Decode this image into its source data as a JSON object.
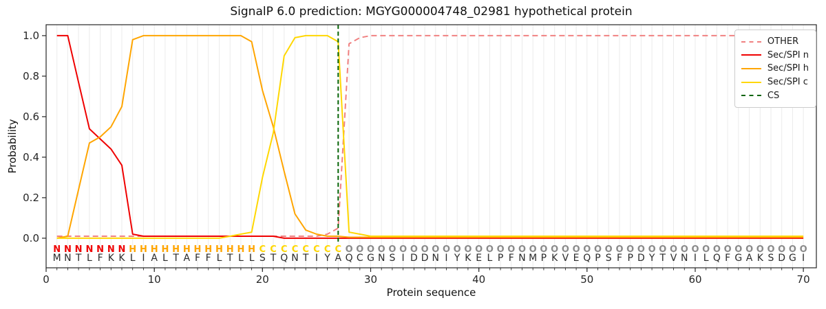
{
  "figure": {
    "title": "SignalP 6.0 prediction: MGYG000004748_02981 hypothetical protein",
    "xlabel": "Protein sequence",
    "ylabel": "Probability"
  },
  "chart_data": {
    "type": "line",
    "title": "SignalP 6.0 prediction: MGYG000004748_02981 hypothetical protein",
    "xlabel": "Protein sequence",
    "ylabel": "Probability",
    "xlim": [
      0,
      71.2
    ],
    "ylim": [
      -0.146,
      1.054
    ],
    "x_ticks": [
      0,
      10,
      20,
      30,
      40,
      50,
      60,
      70
    ],
    "y_ticks": [
      0.0,
      0.2,
      0.4,
      0.6,
      0.8,
      1.0
    ],
    "y_tick_labels": [
      "0.0",
      "0.2",
      "0.4",
      "0.6",
      "0.8",
      "1.0"
    ],
    "grid": {
      "vertical_minor": true,
      "horizontal": false,
      "color": "#ebebeb"
    },
    "legend_position": "upper-right",
    "x_positions": "residues 1-70",
    "series": [
      {
        "name": "OTHER",
        "color": "#f08080",
        "dash": true,
        "values": [
          0.01,
          0.01,
          0.01,
          0.01,
          0.01,
          0.01,
          0.01,
          0.01,
          0.01,
          0.01,
          0.01,
          0.01,
          0.01,
          0.01,
          0.01,
          0.01,
          0.01,
          0.01,
          0.01,
          0.01,
          0.01,
          0.01,
          0.01,
          0.01,
          0.01,
          0.02,
          0.05,
          0.96,
          0.99,
          1.0,
          1.0,
          1.0,
          1.0,
          1.0,
          1.0,
          1.0,
          1.0,
          1.0,
          1.0,
          1.0,
          1.0,
          1.0,
          1.0,
          1.0,
          1.0,
          1.0,
          1.0,
          1.0,
          1.0,
          1.0,
          1.0,
          1.0,
          1.0,
          1.0,
          1.0,
          1.0,
          1.0,
          1.0,
          1.0,
          1.0,
          1.0,
          1.0,
          1.0,
          1.0,
          1.0,
          1.0,
          1.0,
          1.0,
          1.0,
          1.0
        ]
      },
      {
        "name": "Sec/SPI n",
        "color": "#ef0000",
        "dash": false,
        "values": [
          1.0,
          1.0,
          0.77,
          0.54,
          0.49,
          0.44,
          0.36,
          0.02,
          0.01,
          0.01,
          0.01,
          0.01,
          0.01,
          0.01,
          0.01,
          0.01,
          0.01,
          0.01,
          0.01,
          0.01,
          0.01,
          0.0,
          0.0,
          0.0,
          0.0,
          0.0,
          0.0,
          0.0,
          0.0,
          0.0,
          0.0,
          0.0,
          0.0,
          0.0,
          0.0,
          0.0,
          0.0,
          0.0,
          0.0,
          0.0,
          0.0,
          0.0,
          0.0,
          0.0,
          0.0,
          0.0,
          0.0,
          0.0,
          0.0,
          0.0,
          0.0,
          0.0,
          0.0,
          0.0,
          0.0,
          0.0,
          0.0,
          0.0,
          0.0,
          0.0,
          0.0,
          0.0,
          0.0,
          0.0,
          0.0,
          0.0,
          0.0,
          0.0,
          0.0,
          0.0
        ]
      },
      {
        "name": "Sec/SPI h",
        "color": "#ffa500",
        "dash": false,
        "values": [
          0.0,
          0.01,
          0.24,
          0.47,
          0.5,
          0.55,
          0.65,
          0.98,
          1.0,
          1.0,
          1.0,
          1.0,
          1.0,
          1.0,
          1.0,
          1.0,
          1.0,
          1.0,
          0.97,
          0.73,
          0.55,
          0.33,
          0.12,
          0.04,
          0.02,
          0.01,
          0.01,
          0.005,
          0.005,
          0.005,
          0.005,
          0.005,
          0.005,
          0.005,
          0.005,
          0.005,
          0.005,
          0.005,
          0.005,
          0.005,
          0.005,
          0.005,
          0.005,
          0.005,
          0.005,
          0.005,
          0.005,
          0.005,
          0.005,
          0.005,
          0.005,
          0.005,
          0.005,
          0.005,
          0.005,
          0.005,
          0.005,
          0.005,
          0.005,
          0.005,
          0.005,
          0.005,
          0.005,
          0.005,
          0.005,
          0.005,
          0.005,
          0.005,
          0.005,
          0.005
        ]
      },
      {
        "name": "Sec/SPI c",
        "color": "#ffd700",
        "dash": false,
        "values": [
          0.0,
          0.0,
          0.0,
          0.0,
          0.0,
          0.0,
          0.0,
          0.0,
          0.0,
          0.0,
          0.0,
          0.0,
          0.0,
          0.0,
          0.0,
          0.0,
          0.01,
          0.02,
          0.03,
          0.3,
          0.52,
          0.9,
          0.99,
          1.0,
          1.0,
          1.0,
          0.97,
          0.03,
          0.02,
          0.01,
          0.01,
          0.01,
          0.01,
          0.01,
          0.01,
          0.01,
          0.01,
          0.01,
          0.01,
          0.01,
          0.01,
          0.01,
          0.01,
          0.01,
          0.01,
          0.01,
          0.01,
          0.01,
          0.01,
          0.01,
          0.01,
          0.01,
          0.01,
          0.01,
          0.01,
          0.01,
          0.01,
          0.01,
          0.01,
          0.01,
          0.01,
          0.01,
          0.01,
          0.01,
          0.01,
          0.01,
          0.01,
          0.01,
          0.01,
          0.01
        ]
      }
    ],
    "cs_marker": {
      "label": "CS",
      "position": 27,
      "color": "#066406",
      "dash": true
    },
    "sequence": "MNTLFKKLIALTAFFLTLLSTQNTIYAQCGNSIDDNIYKELPFNMPKVEQPSFPDYTVNILQFGAKSDGI",
    "region_labels": "NNNNNNNHHHHHHHHHHHHCCCCCCCCOOOOOOOOOOOOOOOOOOOOOOOOOOOOOOOOOOOOOOOOOOO",
    "region_colors": {
      "N": "#ef0000",
      "H": "#ffa500",
      "C": "#ffd700",
      "O": "#8a8a8a"
    },
    "sequence_color": "#2b2b2b",
    "axis_color": "#262626"
  }
}
